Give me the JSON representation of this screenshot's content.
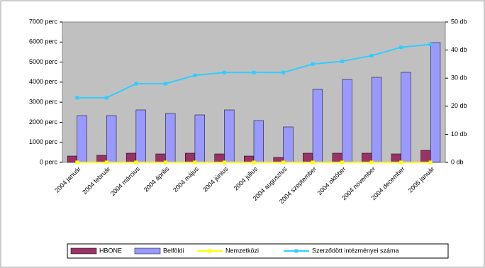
{
  "chart_data": {
    "type": "bar-line",
    "categories": [
      "2004 január",
      "2004 február",
      "2004 március",
      "2004 április",
      "2004 május",
      "2004 június",
      "2004 július",
      "2004 augusztus",
      "2004 szeptember",
      "2004 október",
      "2004 november",
      "2004 december",
      "2005 január"
    ],
    "series": [
      {
        "name": "HBONE",
        "color": "#993366",
        "kind": "bar",
        "values": [
          318,
          354,
          460,
          424,
          460,
          424,
          318,
          247,
          460,
          460,
          460,
          424,
          601
        ]
      },
      {
        "name": "Belföldi",
        "color": "#9999ff",
        "kind": "bar",
        "values": [
          2333,
          2333,
          2616,
          2439,
          2369,
          2616,
          2086,
          1768,
          3641,
          4136,
          4242,
          4490,
          5975
        ]
      },
      {
        "name": "Nemzetközi",
        "color": "#ffff00",
        "kind": "line",
        "values": [
          0,
          0,
          0,
          0,
          0,
          0,
          0,
          0,
          0,
          0,
          0,
          0,
          0
        ]
      },
      {
        "name": "Szerződött intézményei száma",
        "color": "#33ccff",
        "kind": "line",
        "axis": "y2",
        "values": [
          23,
          23,
          28,
          28,
          31,
          32,
          32,
          32,
          35,
          36,
          38,
          41,
          42
        ]
      }
    ],
    "ylim": [
      0,
      7000
    ],
    "yticks": [
      {
        "value": 0,
        "label": "0 perc"
      },
      {
        "value": 1000,
        "label": "1000 perc"
      },
      {
        "value": 2000,
        "label": "2000 perc"
      },
      {
        "value": 3000,
        "label": "3000 perc"
      },
      {
        "value": 4000,
        "label": "4000 perc"
      },
      {
        "value": 5000,
        "label": "5000 perc"
      },
      {
        "value": 6000,
        "label": "6000 perc"
      },
      {
        "value": 7000,
        "label": "7000 perc"
      }
    ],
    "y2lim": [
      0,
      50
    ],
    "y2ticks": [
      {
        "value": 0,
        "label": "0 db"
      },
      {
        "value": 10,
        "label": "10 db"
      },
      {
        "value": 20,
        "label": "20 db"
      },
      {
        "value": 30,
        "label": "30 db"
      },
      {
        "value": 40,
        "label": "40 db"
      },
      {
        "value": 50,
        "label": "50 db"
      }
    ]
  }
}
